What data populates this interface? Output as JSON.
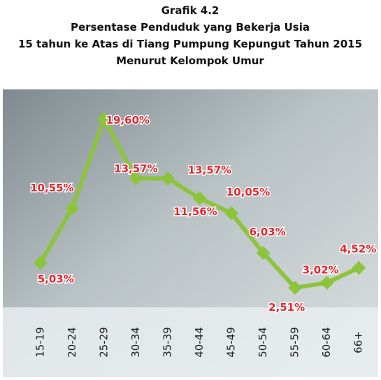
{
  "chart_data": {
    "type": "line",
    "title": [
      "Grafik 4.2",
      "Persentase Penduduk yang Bekerja Usia",
      "15 tahun ke Atas di Tiang Pumpung Kepungut Tahun 2015",
      "Menurut Kelompok Umur"
    ],
    "categories": [
      "15-19",
      "20-24",
      "25-29",
      "30-34",
      "35-39",
      "40-44",
      "45-49",
      "50-54",
      "55-59",
      "60-64",
      "66+"
    ],
    "values": [
      5.03,
      10.55,
      19.6,
      13.57,
      13.57,
      11.56,
      10.05,
      6.03,
      2.51,
      3.02,
      4.52
    ],
    "value_labels": [
      "5,03%",
      "10,55%",
      "19,60%",
      "13,57%",
      "13,57%",
      "11,56%",
      "10,05%",
      "6,03%",
      "2,51%",
      "3,02%",
      "4,52%"
    ],
    "color": "#8cc43c",
    "ylim": [
      0,
      22
    ]
  }
}
